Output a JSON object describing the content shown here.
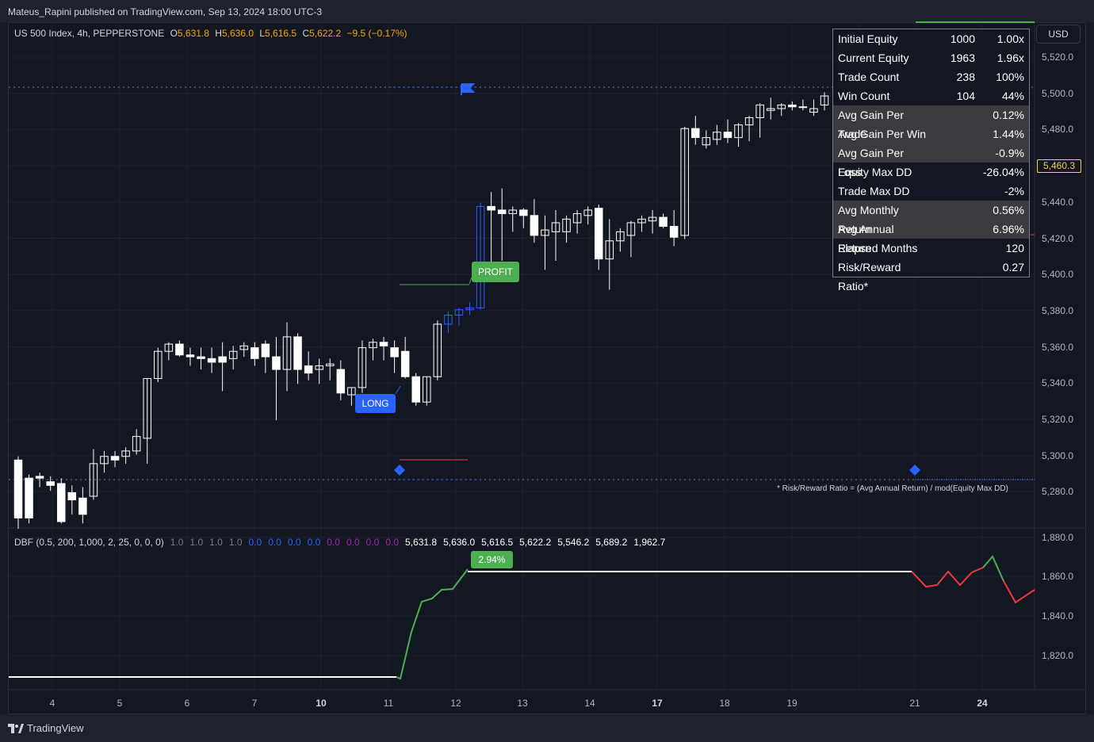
{
  "header": {
    "published": "Mateus_Rapini published on TradingView.com, Sep 13, 2024 18:00 UTC-3"
  },
  "legend": {
    "symbol": "US 500 Index, 4h, PEPPERSTONE",
    "o_label": "O",
    "o": "5,631.8",
    "h_label": "H",
    "h": "5,636.0",
    "l_label": "L",
    "l": "5,616.5",
    "c_label": "C",
    "c": "5,622.2",
    "change": "−9.5 (−0.17%)"
  },
  "currency": "USD",
  "price_axis": [
    "5,520.0",
    "5,500.0",
    "5,480.0",
    "5,460.0",
    "5,440.0",
    "5,420.0",
    "5,400.0",
    "5,380.0",
    "5,360.0",
    "5,340.0",
    "5,320.0",
    "5,300.0",
    "5,280.0"
  ],
  "last_price": "5,460.3",
  "stats_table": [
    {
      "label": "Initial Equity",
      "v1": "1000",
      "v2": "1.00x"
    },
    {
      "label": "Current Equity",
      "v1": "1963",
      "v2": "1.96x"
    },
    {
      "label": "Trade Count",
      "v1": "238",
      "v2": "100%"
    },
    {
      "label": "Win Count",
      "v1": "104",
      "v2": "44%"
    },
    {
      "label": "Avg Gain Per Trade",
      "v1": "",
      "v2": "0.12%"
    },
    {
      "label": "Avg Gain Per Win",
      "v1": "",
      "v2": "1.44%"
    },
    {
      "label": "Avg Gain Per Loss",
      "v1": "",
      "v2": "-0.9%"
    },
    {
      "label": "Equity Max DD",
      "v1": "",
      "v2": "-26.04%"
    },
    {
      "label": "Trade Max DD",
      "v1": "",
      "v2": "-2%"
    },
    {
      "label": "Avg Monthly Return",
      "v1": "",
      "v2": "0.56%"
    },
    {
      "label": "Avg Annual Return",
      "v1": "",
      "v2": "6.96%"
    },
    {
      "label": "Elapsed Months",
      "v1": "",
      "v2": "120"
    },
    {
      "label": "Risk/Reward Ratio*",
      "v1": "",
      "v2": "0.27"
    }
  ],
  "footnote": "* Risk/Reward Ratio = (Avg Annual Return) / mod(Equity Max DD)",
  "badges": {
    "long": "LONG",
    "profit": "PROFIT",
    "gain": "2.94%"
  },
  "indicator": {
    "name": "DBF (0.5, 200, 1,000, 2, 25, 0, 0, 0)",
    "params_gray": [
      "1.0",
      "1.0",
      "1.0",
      "1.0"
    ],
    "params_blue": [
      "0.0",
      "0.0",
      "0.0",
      "0.0"
    ],
    "params_purple": [
      "0.0",
      "0.0",
      "0.0",
      "0.0"
    ],
    "values": [
      "5,631.8",
      "5,636.0",
      "5,616.5",
      "5,622.2",
      "5,546.2",
      "5,689.2",
      "1,962.7"
    ]
  },
  "indicator_axis": [
    "1,880.0",
    "1,860.0",
    "1,840.0",
    "1,820.0"
  ],
  "time_axis": [
    "4",
    "5",
    "6",
    "7",
    "10",
    "11",
    "12",
    "13",
    "14",
    "17",
    "18",
    "19",
    "21",
    "24"
  ],
  "time_axis_bold": [
    "10",
    "17",
    "24"
  ],
  "brand": "TradingView",
  "colors": {
    "bg": "#131722",
    "up": "#ffffff",
    "down": "#ffffff",
    "long_blue": "#2962ff",
    "profit_green": "#4caf50",
    "loss_red": "#f23645",
    "accent_orange": "#f7a600"
  },
  "chart_data": {
    "type": "candlestick",
    "ylim": [
      5270,
      5530
    ],
    "candles": [
      [
        5300,
        5302,
        5262,
        5268
      ],
      [
        5290,
        5292,
        5265,
        5268
      ],
      [
        5291,
        5293,
        5285,
        5290
      ],
      [
        5288,
        5291,
        5283,
        5286
      ],
      [
        5287,
        5290,
        5265,
        5266
      ],
      [
        5282,
        5286,
        5270,
        5278
      ],
      [
        5279,
        5285,
        5265,
        5270
      ],
      [
        5280,
        5306,
        5278,
        5298
      ],
      [
        5298,
        5305,
        5293,
        5302
      ],
      [
        5302,
        5305,
        5296,
        5300
      ],
      [
        5302,
        5307,
        5298,
        5305
      ],
      [
        5305,
        5317,
        5303,
        5313
      ],
      [
        5312,
        5345,
        5298,
        5345
      ],
      [
        5345,
        5362,
        5343,
        5360
      ],
      [
        5360,
        5365,
        5355,
        5364
      ],
      [
        5364,
        5366,
        5357,
        5358
      ],
      [
        5358,
        5362,
        5352,
        5357
      ],
      [
        5357,
        5362,
        5350,
        5356
      ],
      [
        5356,
        5362,
        5348,
        5354
      ],
      [
        5357,
        5365,
        5338,
        5354
      ],
      [
        5356,
        5363,
        5350,
        5360
      ],
      [
        5361,
        5365,
        5357,
        5363
      ],
      [
        5362,
        5365,
        5352,
        5356
      ],
      [
        5364,
        5366,
        5348,
        5357
      ],
      [
        5357,
        5368,
        5322,
        5350
      ],
      [
        5350,
        5376,
        5338,
        5368
      ],
      [
        5368,
        5370,
        5342,
        5350
      ],
      [
        5352,
        5360,
        5344,
        5348
      ],
      [
        5350,
        5356,
        5342,
        5352
      ],
      [
        5352,
        5356,
        5344,
        5353
      ],
      [
        5350,
        5355,
        5333,
        5337
      ],
      [
        5336,
        5340,
        5330,
        5340
      ],
      [
        5340,
        5366,
        5337,
        5362
      ],
      [
        5362,
        5367,
        5355,
        5365
      ],
      [
        5365,
        5368,
        5355,
        5363
      ],
      [
        5362,
        5366,
        5348,
        5357
      ],
      [
        5360,
        5368,
        5345,
        5346
      ],
      [
        5346,
        5348,
        5330,
        5332
      ],
      [
        5332,
        5346,
        5330,
        5346
      ],
      [
        5346,
        5377,
        5344,
        5375
      ],
      [
        5375,
        5382,
        5370,
        5380
      ],
      [
        5380,
        5384,
        5374,
        5383
      ],
      [
        5383,
        5387,
        5380,
        5384
      ],
      [
        5384,
        5442,
        5383,
        5440
      ],
      [
        5440,
        5448,
        5408,
        5438
      ],
      [
        5438,
        5450,
        5410,
        5436
      ],
      [
        5436,
        5440,
        5426,
        5438
      ],
      [
        5438,
        5439,
        5428,
        5435
      ],
      [
        5435,
        5444,
        5420,
        5424
      ],
      [
        5424,
        5435,
        5405,
        5427
      ],
      [
        5426,
        5438,
        5410,
        5431
      ],
      [
        5426,
        5435,
        5420,
        5433
      ],
      [
        5431,
        5438,
        5425,
        5436
      ],
      [
        5435,
        5440,
        5430,
        5438
      ],
      [
        5439,
        5441,
        5405,
        5411
      ],
      [
        5411,
        5433,
        5394,
        5421
      ],
      [
        5421,
        5428,
        5415,
        5426
      ],
      [
        5424,
        5432,
        5412,
        5431
      ],
      [
        5431,
        5435,
        5426,
        5433
      ],
      [
        5432,
        5438,
        5425,
        5434
      ],
      [
        5434,
        5436,
        5428,
        5429
      ],
      [
        5429,
        5438,
        5418,
        5423
      ],
      [
        5424,
        5484,
        5422,
        5483
      ],
      [
        5483,
        5490,
        5474,
        5478
      ],
      [
        5474,
        5482,
        5472,
        5478
      ],
      [
        5477,
        5485,
        5474,
        5481
      ],
      [
        5481,
        5488,
        5475,
        5478
      ],
      [
        5478,
        5486,
        5473,
        5485
      ],
      [
        5485,
        5490,
        5476,
        5489
      ],
      [
        5489,
        5497,
        5478,
        5496
      ],
      [
        5493,
        5500,
        5488,
        5494
      ],
      [
        5494,
        5497,
        5490,
        5496
      ],
      [
        5496,
        5498,
        5493,
        5495
      ],
      [
        5495,
        5499,
        5493,
        5495
      ],
      [
        5492,
        5499,
        5490,
        5494
      ],
      [
        5496,
        5503,
        5493,
        5501
      ]
    ]
  }
}
